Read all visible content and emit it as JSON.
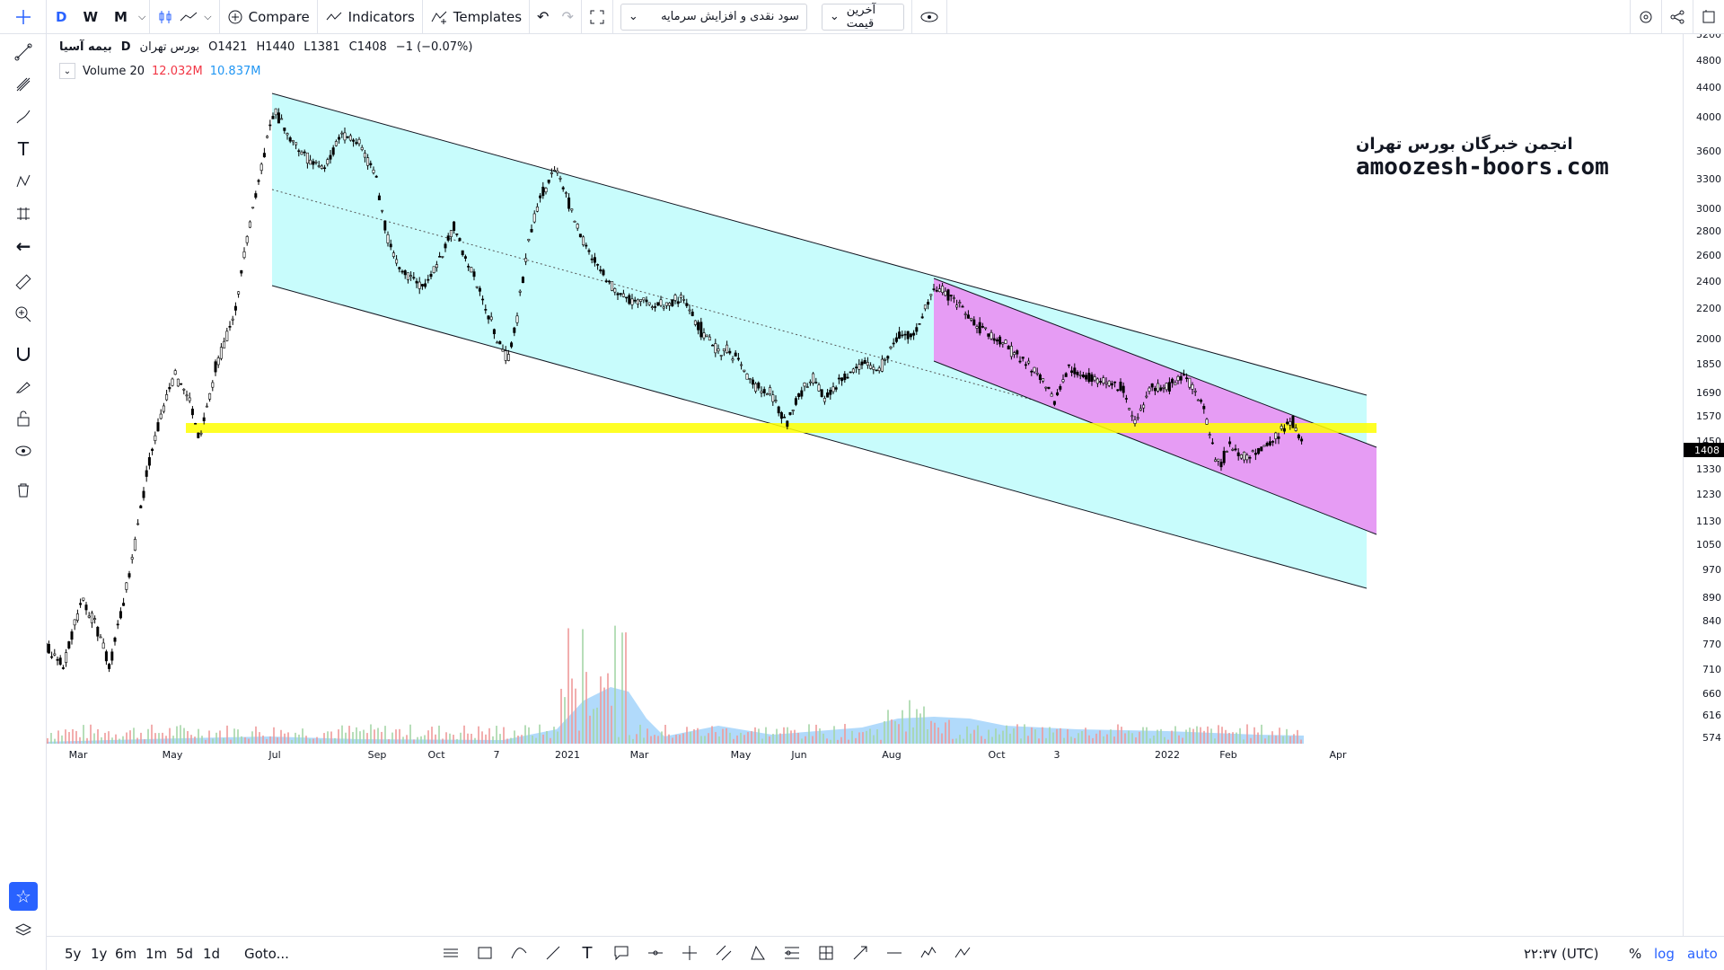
{
  "header": {
    "intervals": [
      "D",
      "W",
      "M"
    ],
    "compare_label": "Compare",
    "indicators_label": "Indicators",
    "templates_label": "Templates",
    "layout_select": "سود نقدی و افزایش سرمایه",
    "price_select": "آخرین قیمت"
  },
  "legend": {
    "symbol": "بیمه آسیا",
    "interval": "D",
    "exchange": "بورس تهران",
    "open": "O1421",
    "high": "H1440",
    "low": "L1381",
    "close": "C1408",
    "change": "−1 (−0.07%)",
    "volume_label": "Volume 20",
    "volume_val1": "12.032M",
    "volume_val2": "10.837M"
  },
  "watermark": {
    "line1": "انجمن خبرگان بورس تهران",
    "line2": "amoozesh-boors.com"
  },
  "price_axis": {
    "labels": [
      "5200",
      "4800",
      "4400",
      "4000",
      "3600",
      "3300",
      "3000",
      "2800",
      "2600",
      "2400",
      "2200",
      "2000",
      "1850",
      "1690",
      "1570",
      "1450",
      "1330",
      "1230",
      "1130",
      "1050",
      "970",
      "890",
      "840",
      "770",
      "710",
      "660",
      "616",
      "574"
    ],
    "current_price": "1408"
  },
  "time_axis": {
    "labels": [
      "Mar",
      "May",
      "Jul",
      "Sep",
      "Oct",
      "7",
      "2021",
      "Mar",
      "May",
      "Jun",
      "Aug",
      "Oct",
      "3",
      "2022",
      "Feb",
      "Apr"
    ]
  },
  "bottom": {
    "ranges": [
      "5y",
      "1y",
      "6m",
      "1m",
      "5d",
      "1d"
    ],
    "goto_label": "Goto...",
    "time_label": "۲۲:۳۷ (UTC)",
    "pct": "%",
    "log": "log",
    "auto": "auto"
  },
  "colors": {
    "accent": "#2962ff",
    "channel_fill": "#c8fcfc",
    "sub_channel_fill": "#e69cf4",
    "support_line": "#ffff00",
    "red_text": "#f23645",
    "blue_text": "#2196f3"
  },
  "chart_data": {
    "type": "candlestick",
    "symbol": "بیمه آسیا",
    "timeframe": "D",
    "log_scale": false,
    "close_series_approx": [
      {
        "date": "Feb",
        "close": 740
      },
      {
        "date": "Mar",
        "close": 860
      },
      {
        "date": "Apr",
        "close": 720
      },
      {
        "date": "May",
        "close": 1700
      },
      {
        "date": "May-end",
        "close": 1430
      },
      {
        "date": "Jun",
        "close": 3600
      },
      {
        "date": "Jul",
        "close": 3900
      },
      {
        "date": "Aug",
        "close": 3500
      },
      {
        "date": "Sep",
        "close": 2600
      },
      {
        "date": "Oct",
        "close": 2350
      },
      {
        "date": "Nov",
        "close": 1820
      },
      {
        "date": "Dec",
        "close": 3300
      },
      {
        "date": "2021",
        "close": 2300
      },
      {
        "date": "Feb",
        "close": 2200
      },
      {
        "date": "Mar",
        "close": 2000
      },
      {
        "date": "Apr",
        "close": 1720
      },
      {
        "date": "May",
        "close": 1520
      },
      {
        "date": "Jun",
        "close": 1690
      },
      {
        "date": "Jul",
        "close": 1850
      },
      {
        "date": "Aug",
        "close": 2400
      },
      {
        "date": "Sep",
        "close": 2000
      },
      {
        "date": "Oct",
        "close": 1620
      },
      {
        "date": "Nov",
        "close": 1850
      },
      {
        "date": "Dec",
        "close": 1770
      },
      {
        "date": "2022",
        "close": 1750
      },
      {
        "date": "Jan",
        "close": 1320
      },
      {
        "date": "Feb",
        "close": 1400
      },
      {
        "date": "Mar",
        "close": 1408
      }
    ],
    "annotations": [
      "Descending channel",
      "Inner descending channel",
      "Horizontal support ~1520"
    ]
  }
}
